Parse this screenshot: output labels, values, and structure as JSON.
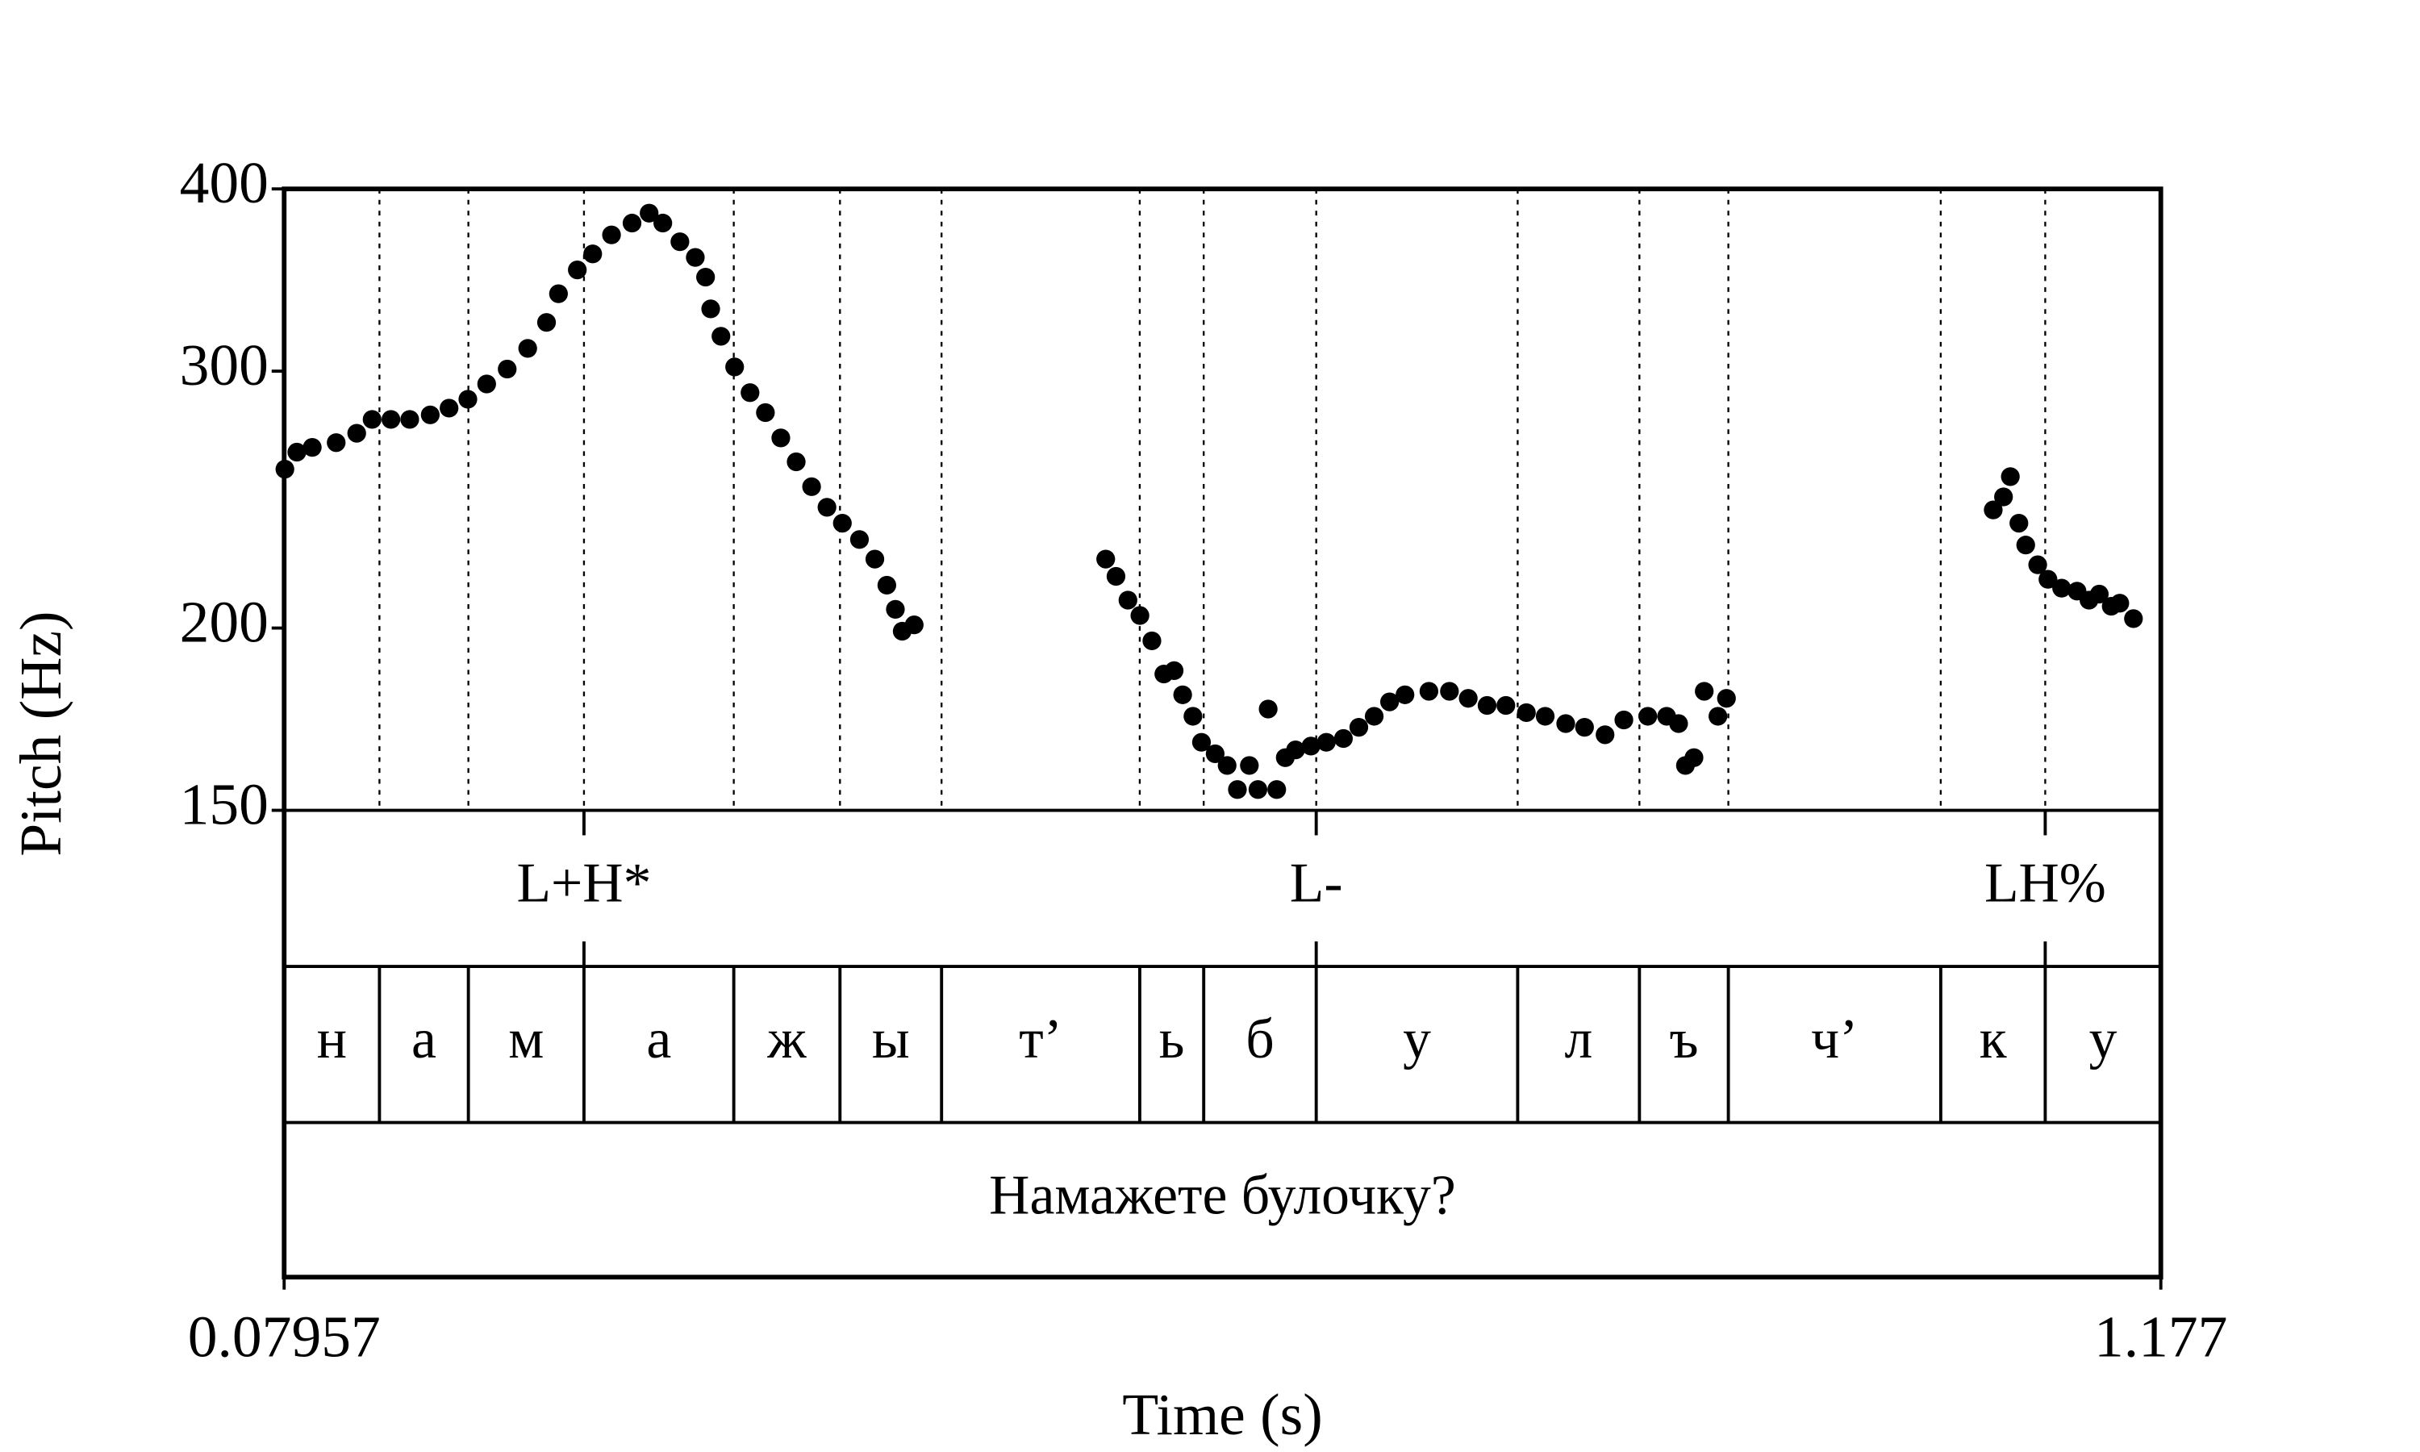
{
  "chart_data": {
    "type": "scatter",
    "xlabel": "Time (s)",
    "ylabel": "Pitch (Hz)",
    "xlim": [
      0.07957,
      1.177
    ],
    "xticks": [
      0.07957,
      1.177
    ],
    "ylim": [
      150,
      400
    ],
    "yticks": [
      150,
      200,
      300,
      400
    ],
    "ylog": true,
    "color": "#000000",
    "x": [
      0.08,
      0.087,
      0.096,
      0.11,
      0.122,
      0.131,
      0.142,
      0.153,
      0.165,
      0.176,
      0.187,
      0.198,
      0.21,
      0.222,
      0.233,
      0.24,
      0.251,
      0.26,
      0.271,
      0.283,
      0.293,
      0.301,
      0.311,
      0.32,
      0.326,
      0.329,
      0.335,
      0.343,
      0.352,
      0.361,
      0.37,
      0.379,
      0.388,
      0.397,
      0.406,
      0.416,
      0.425,
      0.432,
      0.437,
      0.441,
      0.448,
      0.56,
      0.566,
      0.573,
      0.58,
      0.587,
      0.594,
      0.6,
      0.605,
      0.611,
      0.616,
      0.624,
      0.631,
      0.637,
      0.644,
      0.649,
      0.655,
      0.66,
      0.665,
      0.671,
      0.68,
      0.689,
      0.699,
      0.708,
      0.717,
      0.726,
      0.735,
      0.749,
      0.761,
      0.772,
      0.783,
      0.794,
      0.806,
      0.817,
      0.829,
      0.84,
      0.852,
      0.863,
      0.877,
      0.888,
      0.895,
      0.899,
      0.904,
      0.91,
      0.918,
      0.923,
      1.079,
      1.085,
      1.089,
      1.094,
      1.098,
      1.105,
      1.111,
      1.119,
      1.128,
      1.135,
      1.141,
      1.148,
      1.153,
      1.161
    ],
    "y": [
      257,
      264,
      266,
      268,
      272,
      278,
      278,
      278,
      280,
      283,
      287,
      294,
      301,
      311,
      324,
      339,
      352,
      361,
      372,
      379,
      385,
      379,
      368,
      359,
      348,
      331,
      317,
      302,
      290,
      281,
      270,
      260,
      250,
      242,
      236,
      230,
      223,
      214,
      206,
      199,
      201,
      223,
      217,
      209,
      204,
      196,
      186,
      187,
      180,
      174,
      167,
      164,
      161,
      155,
      161,
      155,
      176,
      155,
      163,
      165,
      166,
      167,
      168,
      171,
      174,
      178,
      180,
      181,
      181,
      179,
      177,
      177,
      175,
      174,
      172,
      171,
      169,
      173,
      174,
      174,
      172,
      161,
      163,
      181,
      174,
      179,
      241,
      246,
      254,
      236,
      228,
      221,
      216,
      213,
      212,
      209,
      211,
      207,
      208,
      203
    ],
    "tiers": [
      {
        "kind": "point",
        "times": [
          0.2549,
          0.6831,
          1.1094
        ],
        "labels": [
          "L+H*",
          "L-",
          "LH%"
        ]
      },
      {
        "kind": "interval",
        "boundaries": [
          0.1353,
          0.1873,
          0.2549,
          0.3425,
          0.4046,
          0.464,
          0.5799,
          0.6173,
          0.6831,
          0.8009,
          0.8721,
          0.9241,
          1.0483,
          1.1094
        ],
        "labels": [
          "н",
          "а",
          "м",
          "а",
          "ж",
          "ы",
          "т’",
          "ь",
          "б",
          "у",
          "л",
          "ъ",
          "ч’",
          "к",
          "у"
        ]
      },
      {
        "kind": "interval",
        "boundaries": [],
        "labels": [
          "Намажете булочку?"
        ]
      }
    ]
  }
}
